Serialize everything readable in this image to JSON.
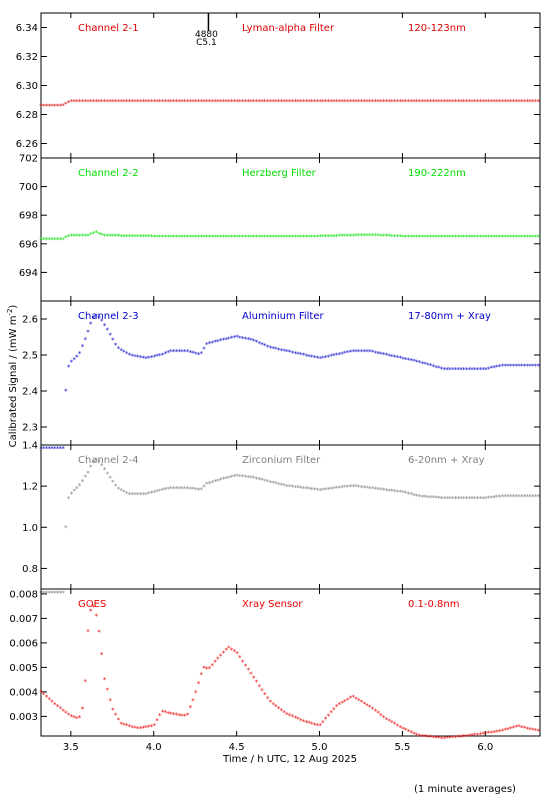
{
  "chart_data": [
    {
      "type": "scatter",
      "panel_labels": [
        "Channel 2-1",
        "Lyman-alpha Filter",
        "120-123nm"
      ],
      "color": "#dd0000",
      "ylim": [
        6.25,
        6.35
      ],
      "yticks": [
        "6.26",
        "6.28",
        "6.30",
        "6.32",
        "6.34"
      ],
      "series": [
        {
          "x": [
            3.32,
            3.4,
            3.45,
            3.48,
            3.5,
            3.6,
            3.8,
            4.0,
            4.5,
            5.0,
            5.5,
            6.0,
            6.33
          ],
          "y": [
            6.286,
            6.286,
            6.286,
            6.288,
            6.289,
            6.289,
            6.289,
            6.289,
            6.289,
            6.289,
            6.289,
            6.289,
            6.289
          ]
        }
      ],
      "annotation": {
        "x": 4.33,
        "text_top": "4880",
        "text_bottom": "C5.1"
      }
    },
    {
      "type": "scatter",
      "panel_labels": [
        "Channel 2-2",
        "Herzberg Filter",
        "190-222nm"
      ],
      "color": "#00dd00",
      "ylim": [
        692,
        702
      ],
      "yticks": [
        "694",
        "696",
        "698",
        "700",
        "702"
      ],
      "series": [
        {
          "x": [
            3.32,
            3.4,
            3.45,
            3.48,
            3.5,
            3.6,
            3.65,
            3.7,
            4.0,
            4.5,
            5.0,
            5.3,
            5.5,
            6.0,
            6.33
          ],
          "y": [
            696.3,
            696.3,
            696.3,
            696.5,
            696.55,
            696.55,
            696.8,
            696.55,
            696.5,
            696.5,
            696.5,
            696.6,
            696.5,
            696.5,
            696.5
          ]
        }
      ]
    },
    {
      "type": "scatter",
      "panel_labels": [
        "Channel 2-3",
        "Aluminium Filter",
        "17-80nm + Xray"
      ],
      "color": "#0000cc",
      "ylim": [
        2.25,
        2.65
      ],
      "yticks": [
        "2.3",
        "2.4",
        "2.5",
        "2.6"
      ],
      "series": [
        {
          "x": [
            3.32,
            3.46,
            3.47,
            3.48,
            3.5,
            3.55,
            3.6,
            3.63,
            3.65,
            3.68,
            3.72,
            3.78,
            3.85,
            3.95,
            4.05,
            4.1,
            4.2,
            4.28,
            4.32,
            4.4,
            4.5,
            4.6,
            4.7,
            4.8,
            4.9,
            5.0,
            5.1,
            5.2,
            5.3,
            5.4,
            5.5,
            5.6,
            5.75,
            5.9,
            6.0,
            6.1,
            6.2,
            6.33
          ],
          "y": [
            2.24,
            2.24,
            2.4,
            2.46,
            2.48,
            2.5,
            2.56,
            2.6,
            2.61,
            2.6,
            2.57,
            2.52,
            2.5,
            2.49,
            2.5,
            2.51,
            2.51,
            2.5,
            2.53,
            2.54,
            2.55,
            2.54,
            2.52,
            2.51,
            2.5,
            2.49,
            2.5,
            2.51,
            2.51,
            2.5,
            2.49,
            2.48,
            2.46,
            2.46,
            2.46,
            2.47,
            2.47,
            2.47
          ]
        }
      ]
    },
    {
      "type": "scatter",
      "panel_labels": [
        "Channel 2-4",
        "Zirconium Filter",
        "6-20nm + Xray"
      ],
      "color": "#808080",
      "ylim": [
        0.7,
        1.4
      ],
      "yticks": [
        "0.8",
        "1.0",
        "1.2",
        "1.4"
      ],
      "series": [
        {
          "x": [
            3.32,
            3.46,
            3.47,
            3.48,
            3.5,
            3.55,
            3.6,
            3.63,
            3.65,
            3.68,
            3.72,
            3.78,
            3.85,
            3.95,
            4.05,
            4.1,
            4.2,
            4.28,
            4.32,
            4.4,
            4.5,
            4.6,
            4.7,
            4.8,
            4.9,
            5.0,
            5.1,
            5.2,
            5.3,
            5.4,
            5.5,
            5.6,
            5.75,
            5.9,
            6.0,
            6.1,
            6.2,
            6.33
          ],
          "y": [
            0.68,
            0.68,
            1.0,
            1.13,
            1.16,
            1.2,
            1.26,
            1.31,
            1.33,
            1.31,
            1.26,
            1.19,
            1.16,
            1.16,
            1.18,
            1.19,
            1.19,
            1.18,
            1.21,
            1.23,
            1.25,
            1.24,
            1.22,
            1.2,
            1.19,
            1.18,
            1.19,
            1.2,
            1.19,
            1.18,
            1.17,
            1.15,
            1.14,
            1.14,
            1.14,
            1.15,
            1.15,
            1.15
          ]
        }
      ]
    },
    {
      "type": "scatter",
      "panel_labels": [
        "GOES",
        "Xray Sensor",
        "0.1-0.8nm"
      ],
      "color": "#ee0000",
      "ylim": [
        0.0022,
        0.0082
      ],
      "yticks": [
        "0.003",
        "0.004",
        "0.005",
        "0.006",
        "0.007",
        "0.008"
      ],
      "series": [
        {
          "x": [
            3.32,
            3.4,
            3.5,
            3.55,
            3.58,
            3.6,
            3.62,
            3.64,
            3.66,
            3.68,
            3.7,
            3.75,
            3.8,
            3.9,
            4.0,
            4.05,
            4.1,
            4.2,
            4.25,
            4.3,
            4.33,
            4.38,
            4.45,
            4.5,
            4.6,
            4.7,
            4.8,
            4.9,
            5.0,
            5.1,
            5.2,
            5.3,
            5.4,
            5.5,
            5.6,
            5.75,
            5.9,
            6.0,
            6.1,
            6.2,
            6.25,
            6.33
          ],
          "y": [
            0.004,
            0.0035,
            0.003,
            0.0029,
            0.0035,
            0.0063,
            0.0073,
            0.0075,
            0.0069,
            0.006,
            0.0046,
            0.0033,
            0.0027,
            0.0025,
            0.0026,
            0.0032,
            0.0031,
            0.003,
            0.0039,
            0.005,
            0.0049,
            0.0053,
            0.0058,
            0.0056,
            0.0046,
            0.0036,
            0.0031,
            0.0028,
            0.0026,
            0.0034,
            0.0038,
            0.0034,
            0.0029,
            0.0025,
            0.0022,
            0.0021,
            0.0022,
            0.0023,
            0.0024,
            0.0026,
            0.0025,
            0.0024
          ]
        }
      ]
    }
  ],
  "axes": {
    "xlim": [
      3.32,
      6.33
    ],
    "xticks": [
      "3.5",
      "4.0",
      "4.5",
      "5.0",
      "5.5",
      "6.0"
    ],
    "xlabel": "Time / h UTC, 12 Aug 2025",
    "ylabel_prefix": "Calibrated Signal / (mW m",
    "ylabel_exp": "-2",
    "ylabel_suffix": ")",
    "footnote": "(1 minute averages)"
  }
}
